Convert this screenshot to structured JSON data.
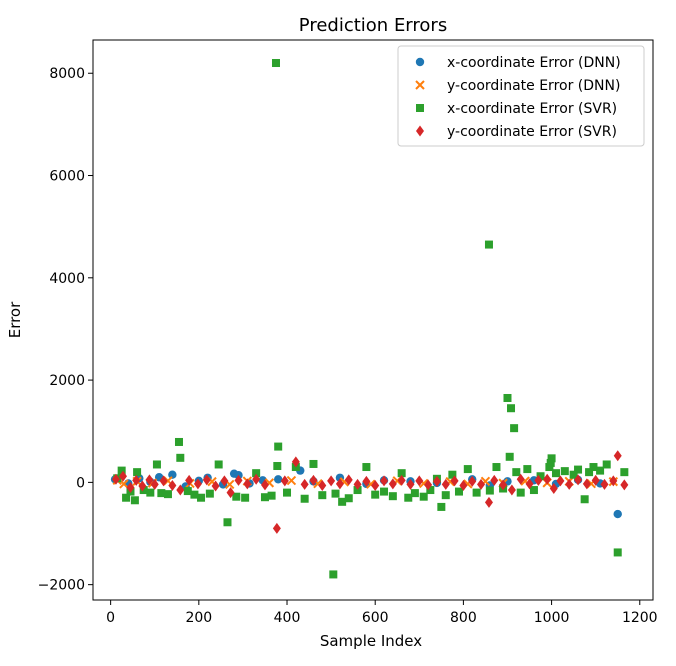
{
  "chart_data": {
    "type": "scatter",
    "title": "Prediction Errors",
    "xlabel": "Sample Index",
    "ylabel": "Error",
    "xlim": [
      -40,
      1230
    ],
    "ylim": [
      -2300,
      8650
    ],
    "x_ticks": [
      0,
      200,
      400,
      600,
      800,
      1000,
      1200
    ],
    "y_ticks": [
      -2000,
      0,
      2000,
      4000,
      6000,
      8000
    ],
    "y_tick_labels": [
      "−2000",
      "0",
      "2000",
      "4000",
      "6000",
      "8000"
    ],
    "grid": false,
    "legend_position": "top-right",
    "series": [
      {
        "name": "x-coordinate Error (DNN)",
        "marker": "circle",
        "color": "#1f77b4",
        "points": [
          [
            10,
            60
          ],
          [
            40,
            -20
          ],
          [
            65,
            80
          ],
          [
            90,
            10
          ],
          [
            110,
            100
          ],
          [
            140,
            150
          ],
          [
            170,
            -80
          ],
          [
            200,
            30
          ],
          [
            220,
            90
          ],
          [
            255,
            -40
          ],
          [
            280,
            170
          ],
          [
            290,
            140
          ],
          [
            315,
            -20
          ],
          [
            345,
            40
          ],
          [
            380,
            60
          ],
          [
            430,
            230
          ],
          [
            460,
            20
          ],
          [
            520,
            90
          ],
          [
            580,
            -30
          ],
          [
            620,
            40
          ],
          [
            680,
            20
          ],
          [
            740,
            -10
          ],
          [
            820,
            60
          ],
          [
            860,
            -60
          ],
          [
            900,
            20
          ],
          [
            960,
            40
          ],
          [
            1010,
            -30
          ],
          [
            1060,
            50
          ],
          [
            1110,
            -20
          ],
          [
            1150,
            -620
          ]
        ]
      },
      {
        "name": "y-coordinate Error (DNN)",
        "marker": "x",
        "color": "#ff7f0e",
        "points": [
          [
            15,
            40
          ],
          [
            30,
            -30
          ],
          [
            60,
            20
          ],
          [
            95,
            -15
          ],
          [
            130,
            30
          ],
          [
            180,
            -20
          ],
          [
            230,
            15
          ],
          [
            270,
            -40
          ],
          [
            310,
            25
          ],
          [
            360,
            -10
          ],
          [
            410,
            35
          ],
          [
            470,
            -25
          ],
          [
            530,
            10
          ],
          [
            590,
            -35
          ],
          [
            650,
            30
          ],
          [
            710,
            -20
          ],
          [
            770,
            15
          ],
          [
            810,
            -30
          ],
          [
            850,
            20
          ],
          [
            890,
            -15
          ],
          [
            940,
            25
          ],
          [
            990,
            -10
          ],
          [
            1040,
            20
          ],
          [
            1090,
            -25
          ],
          [
            1140,
            15
          ]
        ]
      },
      {
        "name": "x-coordinate Error (SVR)",
        "marker": "square",
        "color": "#2ca02c",
        "points": [
          [
            15,
            80
          ],
          [
            25,
            230
          ],
          [
            35,
            -300
          ],
          [
            45,
            -180
          ],
          [
            55,
            -350
          ],
          [
            60,
            200
          ],
          [
            75,
            -150
          ],
          [
            90,
            -200
          ],
          [
            105,
            350
          ],
          [
            115,
            -210
          ],
          [
            130,
            -230
          ],
          [
            155,
            790
          ],
          [
            158,
            480
          ],
          [
            175,
            -170
          ],
          [
            190,
            -240
          ],
          [
            205,
            -300
          ],
          [
            225,
            -220
          ],
          [
            245,
            350
          ],
          [
            265,
            -780
          ],
          [
            285,
            -280
          ],
          [
            305,
            -300
          ],
          [
            330,
            180
          ],
          [
            350,
            -290
          ],
          [
            365,
            -260
          ],
          [
            375,
            8200
          ],
          [
            378,
            320
          ],
          [
            380,
            700
          ],
          [
            400,
            -200
          ],
          [
            420,
            300
          ],
          [
            440,
            -320
          ],
          [
            460,
            360
          ],
          [
            480,
            -250
          ],
          [
            505,
            -1800
          ],
          [
            510,
            -220
          ],
          [
            525,
            -380
          ],
          [
            540,
            -310
          ],
          [
            560,
            -150
          ],
          [
            580,
            300
          ],
          [
            600,
            -240
          ],
          [
            620,
            -180
          ],
          [
            640,
            -270
          ],
          [
            660,
            180
          ],
          [
            675,
            -300
          ],
          [
            690,
            -210
          ],
          [
            710,
            -280
          ],
          [
            725,
            -150
          ],
          [
            740,
            70
          ],
          [
            750,
            -480
          ],
          [
            760,
            -250
          ],
          [
            775,
            150
          ],
          [
            790,
            -180
          ],
          [
            810,
            260
          ],
          [
            830,
            -200
          ],
          [
            858,
            4650
          ],
          [
            860,
            -160
          ],
          [
            875,
            300
          ],
          [
            890,
            -120
          ],
          [
            900,
            1650
          ],
          [
            905,
            500
          ],
          [
            908,
            1450
          ],
          [
            915,
            1060
          ],
          [
            920,
            200
          ],
          [
            930,
            -200
          ],
          [
            945,
            260
          ],
          [
            960,
            -150
          ],
          [
            975,
            120
          ],
          [
            995,
            300
          ],
          [
            998,
            380
          ],
          [
            1000,
            470
          ],
          [
            1010,
            180
          ],
          [
            1030,
            220
          ],
          [
            1050,
            150
          ],
          [
            1060,
            250
          ],
          [
            1075,
            -330
          ],
          [
            1085,
            200
          ],
          [
            1095,
            300
          ],
          [
            1110,
            230
          ],
          [
            1125,
            350
          ],
          [
            1150,
            -1370
          ],
          [
            1165,
            200
          ]
        ]
      },
      {
        "name": "y-coordinate Error (SVR)",
        "marker": "diamond",
        "color": "#d62728",
        "points": [
          [
            12,
            60
          ],
          [
            28,
            120
          ],
          [
            45,
            -100
          ],
          [
            58,
            40
          ],
          [
            72,
            -70
          ],
          [
            88,
            50
          ],
          [
            100,
            -40
          ],
          [
            120,
            30
          ],
          [
            140,
            -60
          ],
          [
            158,
            -150
          ],
          [
            178,
            40
          ],
          [
            198,
            -30
          ],
          [
            218,
            50
          ],
          [
            238,
            -70
          ],
          [
            258,
            30
          ],
          [
            272,
            -200
          ],
          [
            290,
            40
          ],
          [
            310,
            -30
          ],
          [
            330,
            60
          ],
          [
            350,
            -50
          ],
          [
            377,
            -900
          ],
          [
            395,
            30
          ],
          [
            420,
            400
          ],
          [
            440,
            -40
          ],
          [
            460,
            40
          ],
          [
            480,
            -60
          ],
          [
            500,
            30
          ],
          [
            520,
            -30
          ],
          [
            540,
            50
          ],
          [
            560,
            -40
          ],
          [
            580,
            20
          ],
          [
            600,
            -60
          ],
          [
            620,
            30
          ],
          [
            640,
            -30
          ],
          [
            660,
            40
          ],
          [
            680,
            -40
          ],
          [
            700,
            30
          ],
          [
            720,
            -50
          ],
          [
            740,
            20
          ],
          [
            760,
            -40
          ],
          [
            780,
            30
          ],
          [
            800,
            -60
          ],
          [
            820,
            20
          ],
          [
            840,
            -40
          ],
          [
            858,
            -390
          ],
          [
            870,
            40
          ],
          [
            890,
            -50
          ],
          [
            910,
            -150
          ],
          [
            930,
            60
          ],
          [
            950,
            -30
          ],
          [
            970,
            40
          ],
          [
            990,
            60
          ],
          [
            1005,
            -120
          ],
          [
            1020,
            30
          ],
          [
            1040,
            -40
          ],
          [
            1060,
            50
          ],
          [
            1080,
            -30
          ],
          [
            1100,
            40
          ],
          [
            1120,
            -40
          ],
          [
            1140,
            30
          ],
          [
            1150,
            520
          ],
          [
            1165,
            -50
          ]
        ]
      }
    ]
  }
}
